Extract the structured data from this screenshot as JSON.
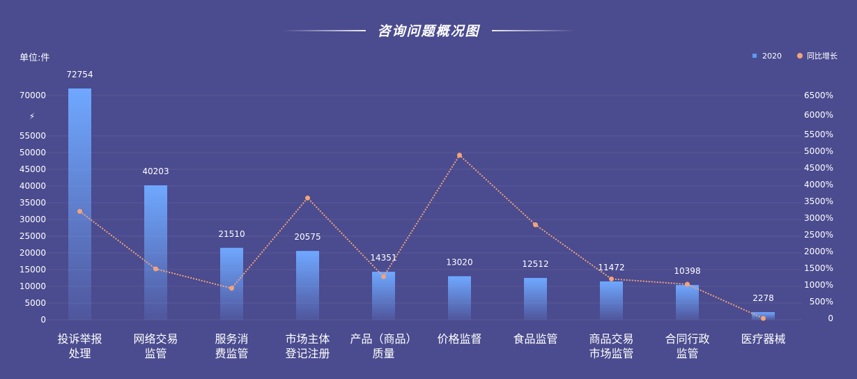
{
  "title": "咨询问题概况图",
  "unit_label": "单位:件",
  "legend": [
    {
      "name": "2020",
      "type": "bar",
      "color": "#5b9bf0"
    },
    {
      "name": "同比增长",
      "type": "line",
      "color": "#f2a47a"
    }
  ],
  "y_break_symbol": "⚡",
  "chart_data": {
    "type": "bar",
    "title": "咨询问题概况图",
    "categories": [
      "投诉举报\n处理",
      "网络交易\n监管",
      "服务消\n费监管",
      "市场主体\n登记注册",
      "产品（商品）\n质量",
      "价格监督",
      "食品监管",
      "商品交易\n市场监管",
      "合同行政\n监管",
      "医疗器械"
    ],
    "series": [
      {
        "name": "2020",
        "type": "bar",
        "axis": "left",
        "values": [
          72754,
          40203,
          21510,
          20575,
          14351,
          13020,
          12512,
          11472,
          10398,
          2278
        ]
      },
      {
        "name": "同比增长",
        "type": "line",
        "axis": "right",
        "unit": "%",
        "values": [
          3200,
          1480,
          900,
          3600,
          1250,
          4880,
          2800,
          1180,
          1020,
          0
        ]
      }
    ],
    "left_axis": {
      "ticks": [
        0,
        5000,
        10000,
        15000,
        20000,
        25000,
        30000,
        35000,
        40000,
        45000,
        50000,
        55000,
        70000
      ],
      "break_between": [
        55000,
        70000
      ],
      "max": 72754
    },
    "right_axis": {
      "ticks": [
        0,
        500,
        1000,
        1500,
        2000,
        2500,
        3000,
        3500,
        4000,
        4500,
        5000,
        5500,
        6000,
        6500
      ],
      "tick_labels": [
        "0",
        "500%",
        "1000%",
        "1500%",
        "2000%",
        "2500%",
        "3000%",
        "3500%",
        "4000%",
        "4500%",
        "5000%",
        "5500%",
        "6000%",
        "6500%"
      ]
    },
    "bar_gradient": [
      "#6fa8ff",
      "#4b4b8f"
    ],
    "line_color": "#f2a47a",
    "grid": true
  }
}
